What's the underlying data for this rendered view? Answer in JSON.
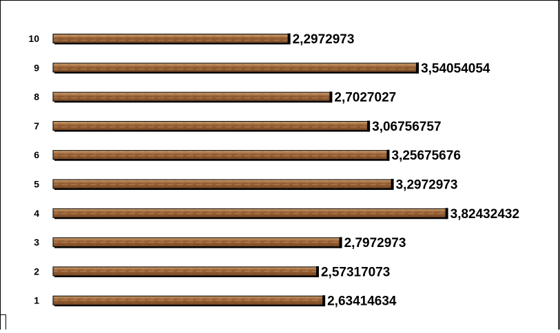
{
  "chart_data": {
    "type": "bar",
    "orientation": "horizontal",
    "title": "",
    "xlabel": "",
    "ylabel": "",
    "grid": false,
    "categories": [
      "1",
      "2",
      "3",
      "4",
      "5",
      "6",
      "7",
      "8",
      "9",
      "10"
    ],
    "values": [
      2.63414634,
      2.57317073,
      2.7972973,
      3.82432432,
      3.2972973,
      3.25675676,
      3.06756757,
      2.7027027,
      3.54054054,
      2.2972973
    ],
    "value_labels": [
      "2,63414634",
      "2,57317073",
      "2,7972973",
      "3,82432432",
      "3,2972973",
      "3,25675676",
      "3,06756757",
      "2,7027027",
      "3,54054054",
      "2,2972973"
    ],
    "bar_color": "#9a6236",
    "bar_highlight_color": "#c89a6a",
    "bar_shadow_color": "#000000",
    "border_color": "#000000"
  }
}
